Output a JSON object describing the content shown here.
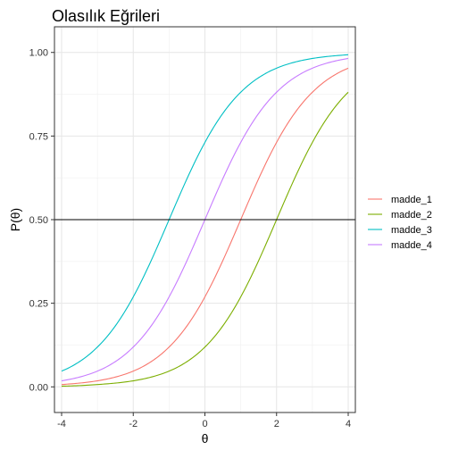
{
  "chart_data": {
    "type": "line",
    "title": "Olasılık Eğrileri",
    "xlabel": "θ",
    "ylabel": "P(θ)",
    "xlim": [
      -4,
      4
    ],
    "ylim": [
      0,
      1
    ],
    "x_ticks": [
      -4,
      -2,
      0,
      2,
      4
    ],
    "x_tick_labels": [
      "-4",
      "-2",
      "0",
      "2",
      "4"
    ],
    "y_ticks": [
      0,
      0.25,
      0.5,
      0.75,
      1
    ],
    "y_tick_labels": [
      "0.00",
      "0.25",
      "0.50",
      "0.75",
      "1.00"
    ],
    "grid": true,
    "legend_position": "right",
    "reference_line": {
      "y": 0.5,
      "color": "#000000"
    },
    "series": [
      {
        "name": "madde_1",
        "color": "#F8766D",
        "x": [
          -4,
          -3,
          -2,
          -1,
          0,
          1,
          2,
          3,
          4
        ],
        "values": [
          0.007,
          0.018,
          0.047,
          0.119,
          0.269,
          0.5,
          0.731,
          0.881,
          0.953
        ]
      },
      {
        "name": "madde_2",
        "color": "#7CAE00",
        "x": [
          -4,
          -3,
          -2,
          -1,
          0,
          1,
          2,
          3,
          4
        ],
        "values": [
          0.002,
          0.007,
          0.018,
          0.047,
          0.119,
          0.269,
          0.5,
          0.731,
          0.881
        ]
      },
      {
        "name": "madde_3",
        "color": "#00BFC4",
        "x": [
          -4,
          -3,
          -2,
          -1,
          0,
          1,
          2,
          3,
          4
        ],
        "values": [
          0.047,
          0.119,
          0.269,
          0.5,
          0.731,
          0.881,
          0.953,
          0.982,
          0.993
        ]
      },
      {
        "name": "madde_4",
        "color": "#C77CFF",
        "x": [
          -4,
          -3,
          -2,
          -1,
          0,
          1,
          2,
          3,
          4
        ],
        "values": [
          0.018,
          0.047,
          0.119,
          0.269,
          0.5,
          0.731,
          0.881,
          0.953,
          0.982
        ]
      }
    ]
  }
}
